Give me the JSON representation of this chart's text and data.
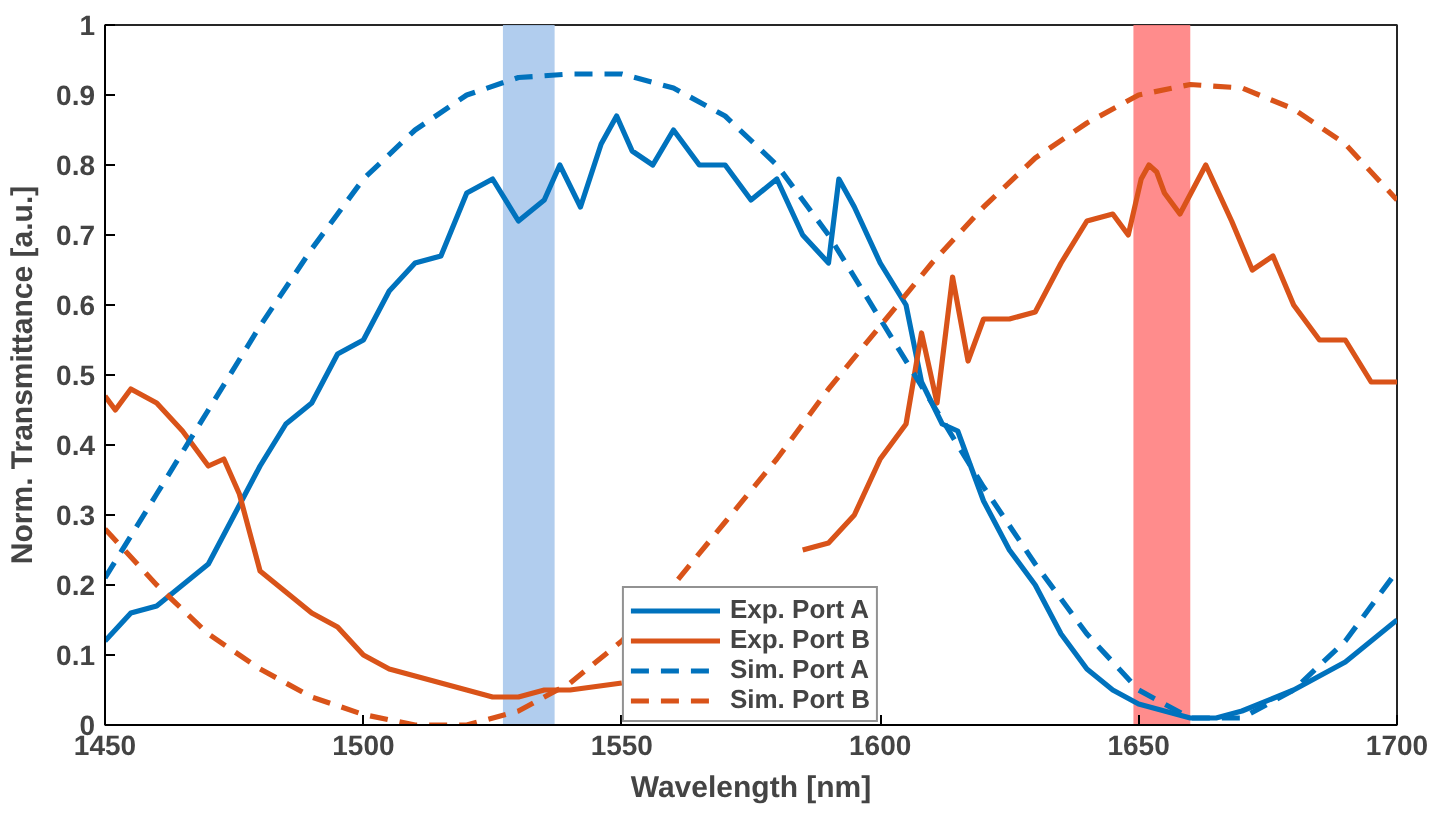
{
  "chart_data": {
    "type": "line",
    "xlabel": "Wavelength [nm]",
    "ylabel": "Norm. Transmittance [a.u.]",
    "xlim": [
      1450,
      1700
    ],
    "ylim": [
      0,
      1
    ],
    "xticks": [
      1450,
      1500,
      1550,
      1600,
      1650,
      1700
    ],
    "yticks": [
      0,
      0.1,
      0.2,
      0.3,
      0.4,
      0.5,
      0.6,
      0.7,
      0.8,
      0.9,
      1
    ],
    "grid": false,
    "legend": "bottom",
    "marker": "none",
    "bands": [
      {
        "axis": "x",
        "from": 1527,
        "to": 1537,
        "color": "#a8c8ec"
      },
      {
        "axis": "x",
        "from": 1649,
        "to": 1660,
        "color": "#ff7f7f"
      }
    ],
    "series": [
      {
        "name": "Exp. Port A",
        "color": "#0072bd",
        "line_style": "solid",
        "x": [
          1450,
          1455,
          1460,
          1465,
          1470,
          1475,
          1480,
          1485,
          1490,
          1495,
          1500,
          1505,
          1510,
          1515,
          1520,
          1525,
          1530,
          1535,
          1538,
          1542,
          1546,
          1549,
          1552,
          1556,
          1560,
          1565,
          1570,
          1575,
          1580,
          1585,
          1590,
          1592,
          1595,
          1600,
          1605,
          1608,
          1612,
          1615,
          1620,
          1625,
          1630,
          1635,
          1640,
          1645,
          1650,
          1655,
          1660,
          1665,
          1670,
          1680,
          1690,
          1700
        ],
        "values": [
          0.12,
          0.16,
          0.17,
          0.2,
          0.23,
          0.3,
          0.37,
          0.43,
          0.46,
          0.53,
          0.55,
          0.62,
          0.66,
          0.67,
          0.76,
          0.78,
          0.72,
          0.75,
          0.8,
          0.74,
          0.83,
          0.87,
          0.82,
          0.8,
          0.85,
          0.8,
          0.8,
          0.75,
          0.78,
          0.7,
          0.66,
          0.78,
          0.74,
          0.66,
          0.6,
          0.49,
          0.43,
          0.42,
          0.32,
          0.25,
          0.2,
          0.13,
          0.08,
          0.05,
          0.03,
          0.02,
          0.01,
          0.01,
          0.02,
          0.05,
          0.09,
          0.15
        ]
      },
      {
        "name": "Exp. Port B",
        "color": "#d95319",
        "line_style": "solid",
        "x": [
          1450,
          1452,
          1455,
          1460,
          1465,
          1470,
          1473,
          1476,
          1480,
          1485,
          1490,
          1495,
          1500,
          1505,
          1510,
          1515,
          1520,
          1525,
          1530,
          1535,
          1540,
          1550,
          1560,
          1570,
          1575,
          1580,
          1585,
          1590,
          1595,
          1600,
          1605,
          1608,
          1611,
          1614,
          1617,
          1620,
          1625,
          1630,
          1635,
          1640,
          1645,
          1648,
          1650.5,
          1652,
          1653.5,
          1655,
          1658,
          1663,
          1668,
          1672,
          1676,
          1680,
          1685,
          1690,
          1695,
          1700
        ],
        "values": [
          0.47,
          0.45,
          0.48,
          0.46,
          0.42,
          0.37,
          0.38,
          0.33,
          0.22,
          0.19,
          0.16,
          0.14,
          0.1,
          0.08,
          0.07,
          0.06,
          0.05,
          0.04,
          0.04,
          0.05,
          0.05,
          0.06,
          null,
          null,
          null,
          null,
          0.25,
          0.26,
          0.3,
          0.38,
          0.43,
          0.56,
          0.46,
          0.64,
          0.52,
          0.58,
          0.58,
          0.59,
          0.66,
          0.72,
          0.73,
          0.7,
          0.78,
          0.8,
          0.79,
          0.76,
          0.73,
          0.8,
          0.72,
          0.65,
          0.67,
          0.6,
          0.55,
          0.55,
          0.49,
          0.49
        ]
      },
      {
        "name": "Sim. Port A",
        "color": "#0072bd",
        "line_style": "dashed",
        "x": [
          1450,
          1460,
          1470,
          1480,
          1490,
          1500,
          1510,
          1520,
          1530,
          1540,
          1550,
          1560,
          1570,
          1580,
          1590,
          1600,
          1610,
          1620,
          1630,
          1640,
          1650,
          1660,
          1670,
          1680,
          1690,
          1700
        ],
        "values": [
          0.21,
          0.33,
          0.45,
          0.57,
          0.68,
          0.78,
          0.85,
          0.9,
          0.925,
          0.93,
          0.93,
          0.91,
          0.87,
          0.8,
          0.7,
          0.58,
          0.46,
          0.34,
          0.23,
          0.13,
          0.05,
          0.01,
          0.01,
          0.05,
          0.12,
          0.22
        ]
      },
      {
        "name": "Sim. Port B",
        "color": "#d95319",
        "line_style": "dashed",
        "x": [
          1450,
          1460,
          1470,
          1480,
          1490,
          1500,
          1510,
          1520,
          1530,
          1540,
          1550,
          1560,
          1570,
          1580,
          1590,
          1600,
          1610,
          1620,
          1630,
          1640,
          1650,
          1660,
          1670,
          1680,
          1690,
          1700
        ],
        "values": [
          0.28,
          0.2,
          0.13,
          0.08,
          0.04,
          0.015,
          0,
          0,
          0.02,
          0.06,
          0.12,
          0.2,
          0.29,
          0.38,
          0.48,
          0.57,
          0.66,
          0.74,
          0.81,
          0.86,
          0.9,
          0.915,
          0.91,
          0.88,
          0.83,
          0.75
        ]
      }
    ]
  }
}
